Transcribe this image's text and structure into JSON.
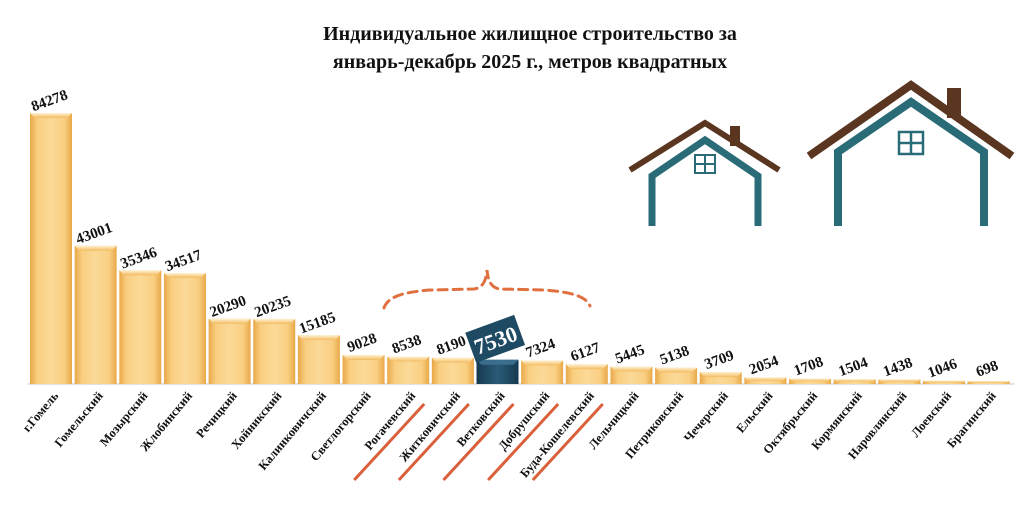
{
  "chart_data": {
    "type": "bar",
    "title_line1": "Индивидуальное жилищное строительство за",
    "title_line2": "январь-декабрь 2025 г., метров квадратных",
    "categories": [
      "г.Гомель",
      "Гомельский",
      "Мозырский",
      "Жлобинский",
      "Речицкий",
      "Хойникский",
      "Калинковичский",
      "Светлогорский",
      "Рогачевский",
      "Житковичский",
      "Ветковский",
      "Добрушский",
      "Буда-Кошелевский",
      "Лельчицкий",
      "Петриковский",
      "Чечерский",
      "Ельский",
      "Октябрьский",
      "Кормянский",
      "Наровлянский",
      "Лоевский",
      "Брагинский"
    ],
    "values": [
      84278,
      43001,
      35346,
      34517,
      20290,
      20235,
      15185,
      9028,
      8538,
      8190,
      7530,
      7324,
      6127,
      5445,
      5138,
      3709,
      2054,
      1708,
      1504,
      1438,
      1046,
      698
    ],
    "highlight_index": 10,
    "struck_categories": [
      "Рогачевский",
      "Житковичский",
      "Ветковский",
      "Добрушский",
      "Буда-Кошелевский"
    ],
    "ylim": [
      0,
      84278
    ],
    "colors": {
      "bar": "#f7c26a",
      "bar_light": "#fbdba0",
      "bar_dark": "#e8a94a",
      "highlight": "#1f4a63",
      "brace": "#e07040",
      "strike": "#d9603a",
      "house_wall": "#2a6b78",
      "house_roof": "#5a3620"
    }
  }
}
